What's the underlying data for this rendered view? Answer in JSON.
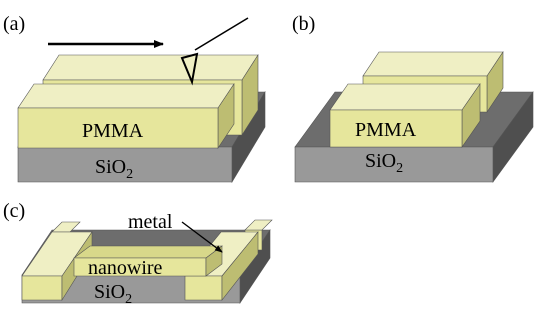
{
  "panels": {
    "a": {
      "tag": "(a)",
      "pmma_label": "PMMA",
      "substrate_label": "SiO",
      "substrate_sub": "2"
    },
    "b": {
      "tag": "(b)",
      "pmma_label": "PMMA",
      "substrate_label": "SiO",
      "substrate_sub": "2"
    },
    "c": {
      "tag": "(c)",
      "metal_label": "metal",
      "nanowire_label": "nanowire",
      "substrate_label": "SiO",
      "substrate_sub": "2"
    }
  },
  "colors": {
    "pmma_top": "#efefc4",
    "pmma_front": "#e6e69c",
    "pmma_side": "#bdbd72",
    "sio2_top": "#6d6d6d",
    "sio2_front": "#999999",
    "sio2_side": "#4f4f4f",
    "nanowire_top": "#d8d88a",
    "outline": "#555555"
  }
}
